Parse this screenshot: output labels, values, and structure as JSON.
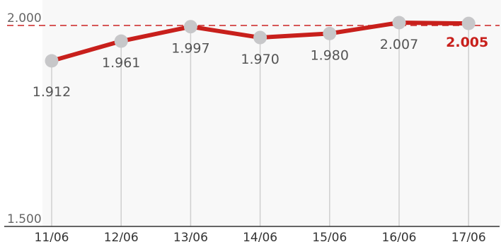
{
  "chart_data": {
    "type": "line",
    "title": "",
    "xlabel": "",
    "ylabel": "",
    "ylim": [
      1500,
      2000
    ],
    "categories": [
      "11/06",
      "12/06",
      "13/06",
      "14/06",
      "15/06",
      "16/06",
      "17/06"
    ],
    "values": [
      1912,
      1961,
      1997,
      1970,
      1980,
      2007,
      2005
    ],
    "value_labels": [
      "1.912",
      "1.961",
      "1.997",
      "1.970",
      "1.980",
      "2.007",
      "2.005"
    ],
    "y_ticks": [
      {
        "value": 2000,
        "label": "2.000"
      },
      {
        "value": 1500,
        "label": "1.500"
      }
    ],
    "reference_line": {
      "value": 2000,
      "style": "dashed",
      "color": "#cc2222"
    },
    "highlight_last": true,
    "grid": false,
    "colors": {
      "line": "#c8201c",
      "marker": "#c7c7c9",
      "label": "#555555",
      "highlight_label": "#c8201c",
      "axis": "#333333",
      "drop_line": "#cfcfcf",
      "shade": "#f8f8f8"
    }
  }
}
